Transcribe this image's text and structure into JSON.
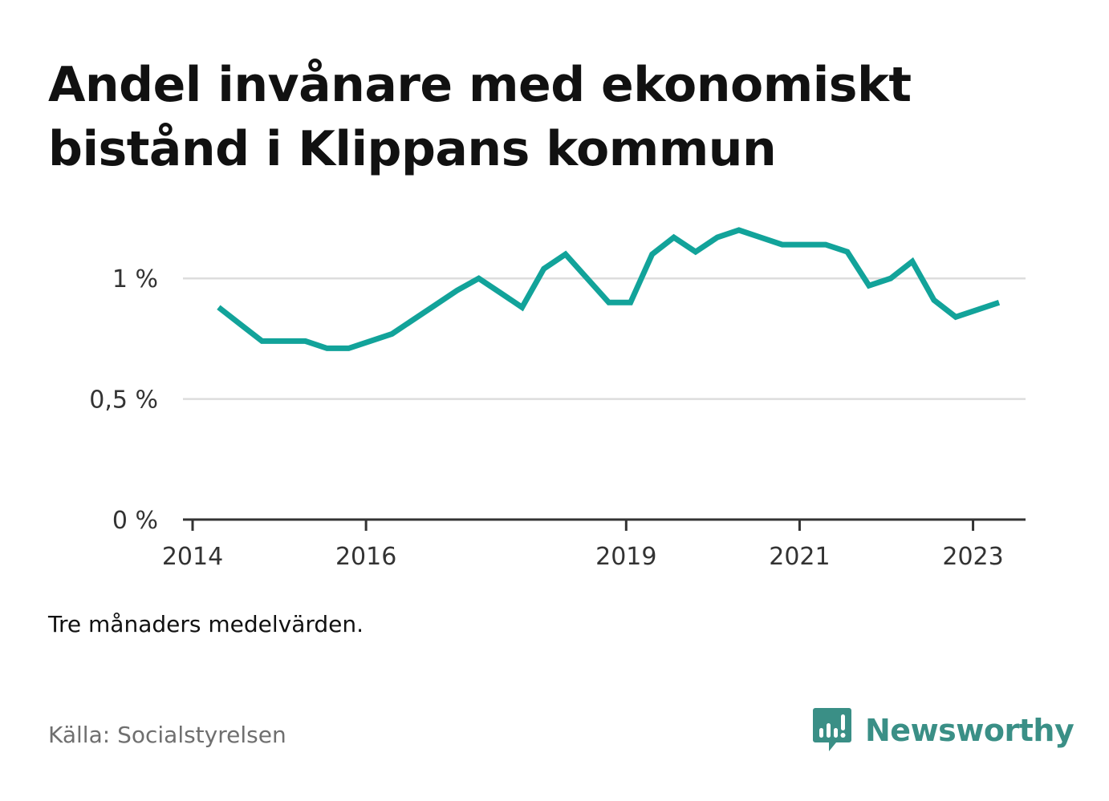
{
  "title": "Andel invånare med ekonomiskt bistånd i Klippans kommun",
  "note": "Tre månaders medelvärden.",
  "source": "Källa: Socialstyrelsen",
  "brand": {
    "name": "Newsworthy",
    "color": "#3a8f86",
    "icon": "bar-chart-speech-bubble-icon"
  },
  "colors": {
    "line": "#12a39a",
    "grid": "#dddddd",
    "axis": "#333333"
  },
  "chart_data": {
    "type": "line",
    "title": "Andel invånare med ekonomiskt bistånd i Klippans kommun",
    "xlabel": "",
    "ylabel": "",
    "grid": true,
    "legend": "none",
    "xlim": [
      2014,
      2023.55
    ],
    "ylim": [
      0,
      1.25
    ],
    "y_ticks": [
      0,
      0.5,
      1
    ],
    "y_tick_labels": [
      "0 %",
      "0,5 %",
      "1 %"
    ],
    "x_ticks": [
      2014,
      2016,
      2019,
      2021,
      2023
    ],
    "x_tick_labels": [
      "2014",
      "2016",
      "2019",
      "2021",
      "2023"
    ],
    "series": [
      {
        "values_unit": "%",
        "x": [
          2014.3,
          2014.55,
          2014.8,
          2015.05,
          2015.3,
          2015.55,
          2015.8,
          2016.05,
          2016.3,
          2016.55,
          2016.8,
          2017.05,
          2017.3,
          2017.55,
          2017.8,
          2018.05,
          2018.3,
          2018.55,
          2018.8,
          2019.05,
          2019.3,
          2019.55,
          2019.8,
          2020.05,
          2020.3,
          2020.55,
          2020.8,
          2021.05,
          2021.3,
          2021.55,
          2021.8,
          2022.05,
          2022.3,
          2022.55,
          2022.8,
          2023.05,
          2023.3
        ],
        "y": [
          0.88,
          0.81,
          0.74,
          0.74,
          0.74,
          0.71,
          0.71,
          0.74,
          0.77,
          0.83,
          0.89,
          0.95,
          1.0,
          0.94,
          0.88,
          1.04,
          1.1,
          1.0,
          0.9,
          0.9,
          1.1,
          1.17,
          1.11,
          1.17,
          1.2,
          1.17,
          1.14,
          1.14,
          1.14,
          1.11,
          0.97,
          1.0,
          1.07,
          0.91,
          0.84,
          0.87,
          0.9
        ]
      }
    ]
  }
}
